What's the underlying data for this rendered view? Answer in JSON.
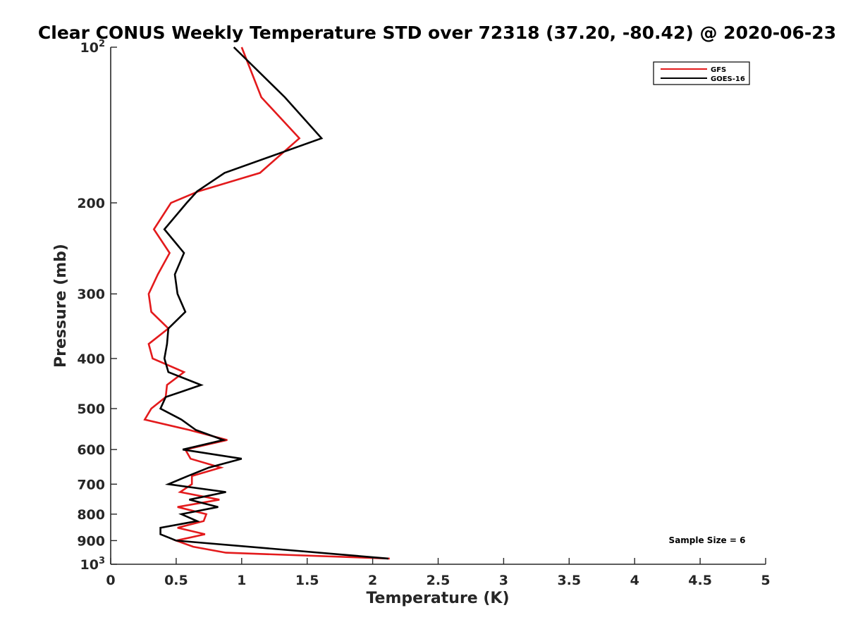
{
  "chart_data": {
    "type": "line",
    "title": "Clear CONUS Weekly Temperature STD over 72318 (37.20, -80.42) @ 2020-06-23",
    "xlabel": "Temperature (K)",
    "ylabel": "Pressure (mb)",
    "xlim": [
      0,
      5
    ],
    "ylim": [
      100,
      1000
    ],
    "y_scale": "log",
    "y_reversed": true,
    "grid": false,
    "legend_position": "top-right",
    "x_ticks": [
      {
        "value": 0,
        "label": "0"
      },
      {
        "value": 0.5,
        "label": "0.5"
      },
      {
        "value": 1,
        "label": "1"
      },
      {
        "value": 1.5,
        "label": "1.5"
      },
      {
        "value": 2,
        "label": "2"
      },
      {
        "value": 2.5,
        "label": "2.5"
      },
      {
        "value": 3,
        "label": "3"
      },
      {
        "value": 3.5,
        "label": "3.5"
      },
      {
        "value": 4,
        "label": "4"
      },
      {
        "value": 4.5,
        "label": "4.5"
      },
      {
        "value": 5,
        "label": "5"
      }
    ],
    "y_ticks": [
      {
        "value": 100,
        "base": "10",
        "exp": "2"
      },
      {
        "value": 200,
        "base": "200",
        "exp": ""
      },
      {
        "value": 300,
        "base": "300",
        "exp": ""
      },
      {
        "value": 400,
        "base": "400",
        "exp": ""
      },
      {
        "value": 500,
        "base": "500",
        "exp": ""
      },
      {
        "value": 600,
        "base": "600",
        "exp": ""
      },
      {
        "value": 700,
        "base": "700",
        "exp": ""
      },
      {
        "value": 800,
        "base": "800",
        "exp": ""
      },
      {
        "value": 900,
        "base": "900",
        "exp": ""
      },
      {
        "value": 1000,
        "base": "10",
        "exp": "3"
      }
    ],
    "series": [
      {
        "name": "GFS",
        "color": "#e31a1c",
        "points": [
          {
            "x": 1.0,
            "y": 100
          },
          {
            "x": 1.15,
            "y": 125
          },
          {
            "x": 1.44,
            "y": 150
          },
          {
            "x": 1.14,
            "y": 175
          },
          {
            "x": 0.67,
            "y": 190
          },
          {
            "x": 0.46,
            "y": 200
          },
          {
            "x": 0.33,
            "y": 225
          },
          {
            "x": 0.45,
            "y": 250
          },
          {
            "x": 0.36,
            "y": 275
          },
          {
            "x": 0.29,
            "y": 300
          },
          {
            "x": 0.31,
            "y": 325
          },
          {
            "x": 0.44,
            "y": 350
          },
          {
            "x": 0.29,
            "y": 375
          },
          {
            "x": 0.32,
            "y": 400
          },
          {
            "x": 0.56,
            "y": 425
          },
          {
            "x": 0.43,
            "y": 450
          },
          {
            "x": 0.42,
            "y": 475
          },
          {
            "x": 0.31,
            "y": 500
          },
          {
            "x": 0.26,
            "y": 525
          },
          {
            "x": 0.6,
            "y": 550
          },
          {
            "x": 0.89,
            "y": 575
          },
          {
            "x": 0.57,
            "y": 600
          },
          {
            "x": 0.61,
            "y": 625
          },
          {
            "x": 0.84,
            "y": 650
          },
          {
            "x": 0.62,
            "y": 675
          },
          {
            "x": 0.62,
            "y": 700
          },
          {
            "x": 0.53,
            "y": 725
          },
          {
            "x": 0.83,
            "y": 750
          },
          {
            "x": 0.51,
            "y": 775
          },
          {
            "x": 0.73,
            "y": 800
          },
          {
            "x": 0.71,
            "y": 825
          },
          {
            "x": 0.51,
            "y": 850
          },
          {
            "x": 0.72,
            "y": 875
          },
          {
            "x": 0.5,
            "y": 900
          },
          {
            "x": 0.63,
            "y": 925
          },
          {
            "x": 0.88,
            "y": 950
          },
          {
            "x": 2.13,
            "y": 975
          }
        ]
      },
      {
        "name": "GOES-16",
        "color": "#000000",
        "points": [
          {
            "x": 0.94,
            "y": 100
          },
          {
            "x": 1.33,
            "y": 125
          },
          {
            "x": 1.61,
            "y": 150
          },
          {
            "x": 0.87,
            "y": 175
          },
          {
            "x": 0.66,
            "y": 190
          },
          {
            "x": 0.58,
            "y": 200
          },
          {
            "x": 0.41,
            "y": 225
          },
          {
            "x": 0.56,
            "y": 250
          },
          {
            "x": 0.49,
            "y": 275
          },
          {
            "x": 0.51,
            "y": 300
          },
          {
            "x": 0.57,
            "y": 325
          },
          {
            "x": 0.44,
            "y": 350
          },
          {
            "x": 0.43,
            "y": 375
          },
          {
            "x": 0.41,
            "y": 400
          },
          {
            "x": 0.44,
            "y": 425
          },
          {
            "x": 0.69,
            "y": 450
          },
          {
            "x": 0.42,
            "y": 475
          },
          {
            "x": 0.38,
            "y": 500
          },
          {
            "x": 0.54,
            "y": 525
          },
          {
            "x": 0.65,
            "y": 550
          },
          {
            "x": 0.86,
            "y": 575
          },
          {
            "x": 0.55,
            "y": 600
          },
          {
            "x": 1.0,
            "y": 625
          },
          {
            "x": 0.75,
            "y": 650
          },
          {
            "x": 0.59,
            "y": 675
          },
          {
            "x": 0.44,
            "y": 700
          },
          {
            "x": 0.88,
            "y": 725
          },
          {
            "x": 0.6,
            "y": 750
          },
          {
            "x": 0.82,
            "y": 775
          },
          {
            "x": 0.54,
            "y": 800
          },
          {
            "x": 0.66,
            "y": 825
          },
          {
            "x": 0.38,
            "y": 850
          },
          {
            "x": 0.38,
            "y": 875
          },
          {
            "x": 0.5,
            "y": 900
          },
          {
            "x": 2.12,
            "y": 975
          }
        ]
      }
    ],
    "annotations": [
      {
        "text": "Sample Size = 6",
        "position": "bottom-right"
      }
    ]
  }
}
